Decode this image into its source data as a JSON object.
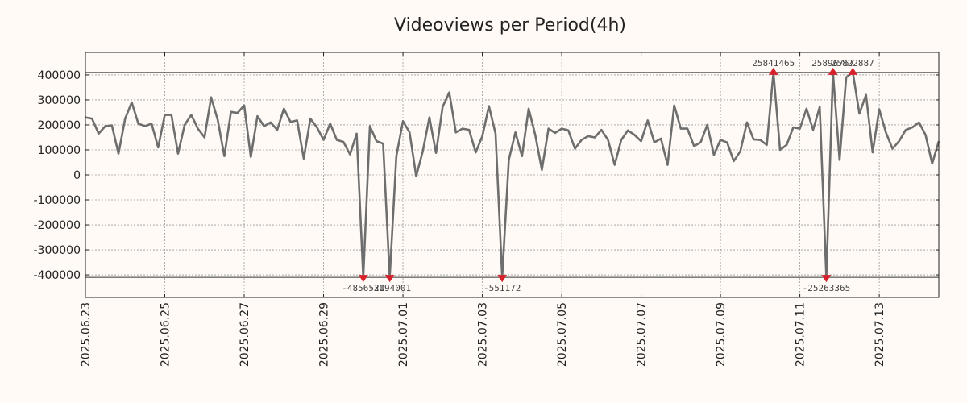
{
  "chart_data": {
    "type": "line",
    "title": "Videoviews per Period(4h)",
    "xlabel": "",
    "ylabel": "",
    "ylim": [
      -490000,
      490000
    ],
    "y_ticks": [
      400000,
      300000,
      200000,
      100000,
      0,
      -100000,
      -200000,
      -300000,
      -400000
    ],
    "y_tick_labels": [
      "400000",
      "300000",
      "200000",
      "100000",
      "0",
      "-100000",
      "-200000",
      "-300000",
      "-400000"
    ],
    "x_tick_labels": [
      "2025.06.23",
      "2025.06.25",
      "2025.06.27",
      "2025.06.29",
      "2025.07.01",
      "2025.07.03",
      "2025.07.05",
      "2025.07.07",
      "2025.07.09",
      "2025.07.11",
      "2025.07.13"
    ],
    "x_tick_index": [
      0,
      12,
      24,
      36,
      48,
      60,
      72,
      84,
      96,
      108,
      120
    ],
    "clip_limits": [
      410000,
      -410000
    ],
    "line_color": "#6e6e6e",
    "marker_color": "#d8202a",
    "series": [
      {
        "name": "Videoviews",
        "values": [
          230000,
          225000,
          165000,
          195000,
          198000,
          85000,
          225000,
          290000,
          205000,
          195000,
          205000,
          110000,
          240000,
          240000,
          85000,
          200000,
          240000,
          185000,
          150000,
          310000,
          220000,
          75000,
          252000,
          248000,
          278000,
          72000,
          235000,
          195000,
          210000,
          180000,
          265000,
          212000,
          218000,
          65000,
          225000,
          190000,
          140000,
          205000,
          140000,
          132000,
          82000,
          165000,
          -410000,
          195000,
          135000,
          125000,
          -410000,
          75000,
          215000,
          170000,
          -5000,
          95000,
          230000,
          88000,
          272000,
          330000,
          170000,
          185000,
          180000,
          90000,
          155000,
          275000,
          165000,
          -410000,
          60000,
          170000,
          75000,
          265000,
          160000,
          20000,
          185000,
          168000,
          185000,
          178000,
          105000,
          140000,
          155000,
          150000,
          180000,
          140000,
          40000,
          140000,
          178000,
          160000,
          135000,
          218000,
          130000,
          145000,
          40000,
          278000,
          185000,
          185000,
          115000,
          130000,
          200000,
          80000,
          140000,
          130000,
          55000,
          95000,
          210000,
          142000,
          140000,
          120000,
          410000,
          100000,
          120000,
          190000,
          185000,
          265000,
          180000,
          272000,
          -410000,
          410000,
          60000,
          390000,
          410000,
          245000,
          320000,
          90000,
          262000,
          170000,
          105000,
          135000,
          180000,
          190000,
          210000,
          160000,
          45000,
          135000
        ]
      }
    ],
    "annotations": [
      {
        "index": 42,
        "label": "-4856520",
        "pos": "below"
      },
      {
        "index": 46,
        "label": "-3194001",
        "pos": "below"
      },
      {
        "index": 63,
        "label": "-551172",
        "pos": "below"
      },
      {
        "index": 104,
        "label": "25841465",
        "pos": "above"
      },
      {
        "index": 112,
        "label": "-25263365",
        "pos": "below"
      },
      {
        "index": 113,
        "label": "25896767",
        "pos": "above"
      },
      {
        "index": 116,
        "label": "25822887",
        "pos": "above"
      }
    ]
  }
}
